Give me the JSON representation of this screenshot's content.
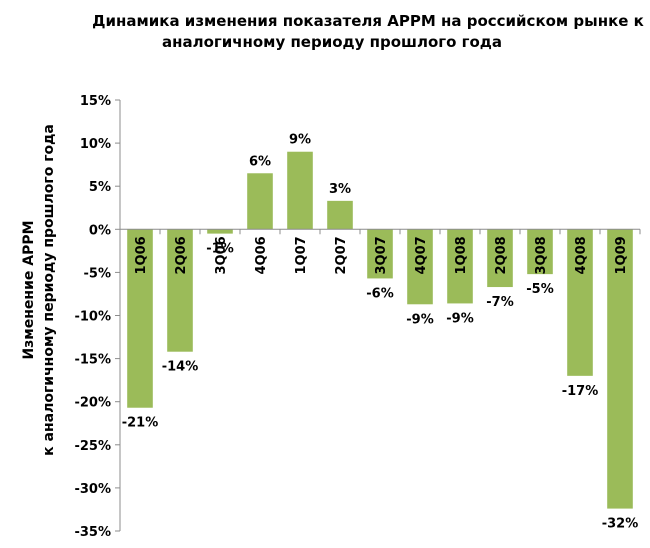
{
  "chart_data": {
    "type": "bar",
    "title_lines": [
      "Динамика изменения показателя APPM на российском рынке к",
      "аналогичному периоду прошлого года"
    ],
    "ylabel_lines": [
      "Изменение APPM",
      "к аналогичному периоду прошлого года"
    ],
    "xlabel": "",
    "categories": [
      "1Q06",
      "2Q06",
      "3Q06",
      "4Q06",
      "1Q07",
      "2Q07",
      "3Q07",
      "4Q07",
      "1Q08",
      "2Q08",
      "3Q08",
      "4Q08",
      "1Q09"
    ],
    "values": [
      -20.7,
      -14.2,
      -0.5,
      6.5,
      9.0,
      3.3,
      -5.7,
      -8.7,
      -8.6,
      -6.7,
      -5.2,
      -17.0,
      -32.4
    ],
    "data_labels": [
      "-21%",
      "-14%",
      "-1%",
      "6%",
      "9%",
      "3%",
      "-6%",
      "-9%",
      "-9%",
      "-7%",
      "-5%",
      "-17%",
      "-32%"
    ],
    "yticks": [
      15,
      10,
      5,
      0,
      -5,
      -10,
      -15,
      -20,
      -25,
      -30,
      -35
    ],
    "ytick_labels": [
      "15%",
      "10%",
      "5%",
      "0%",
      "-5%",
      "-10%",
      "-15%",
      "-20%",
      "-25%",
      "-30%",
      "-35%"
    ],
    "ylim": [
      -35,
      15
    ],
    "bar_color": "#9BBB59",
    "grid": false,
    "legend": "none"
  }
}
